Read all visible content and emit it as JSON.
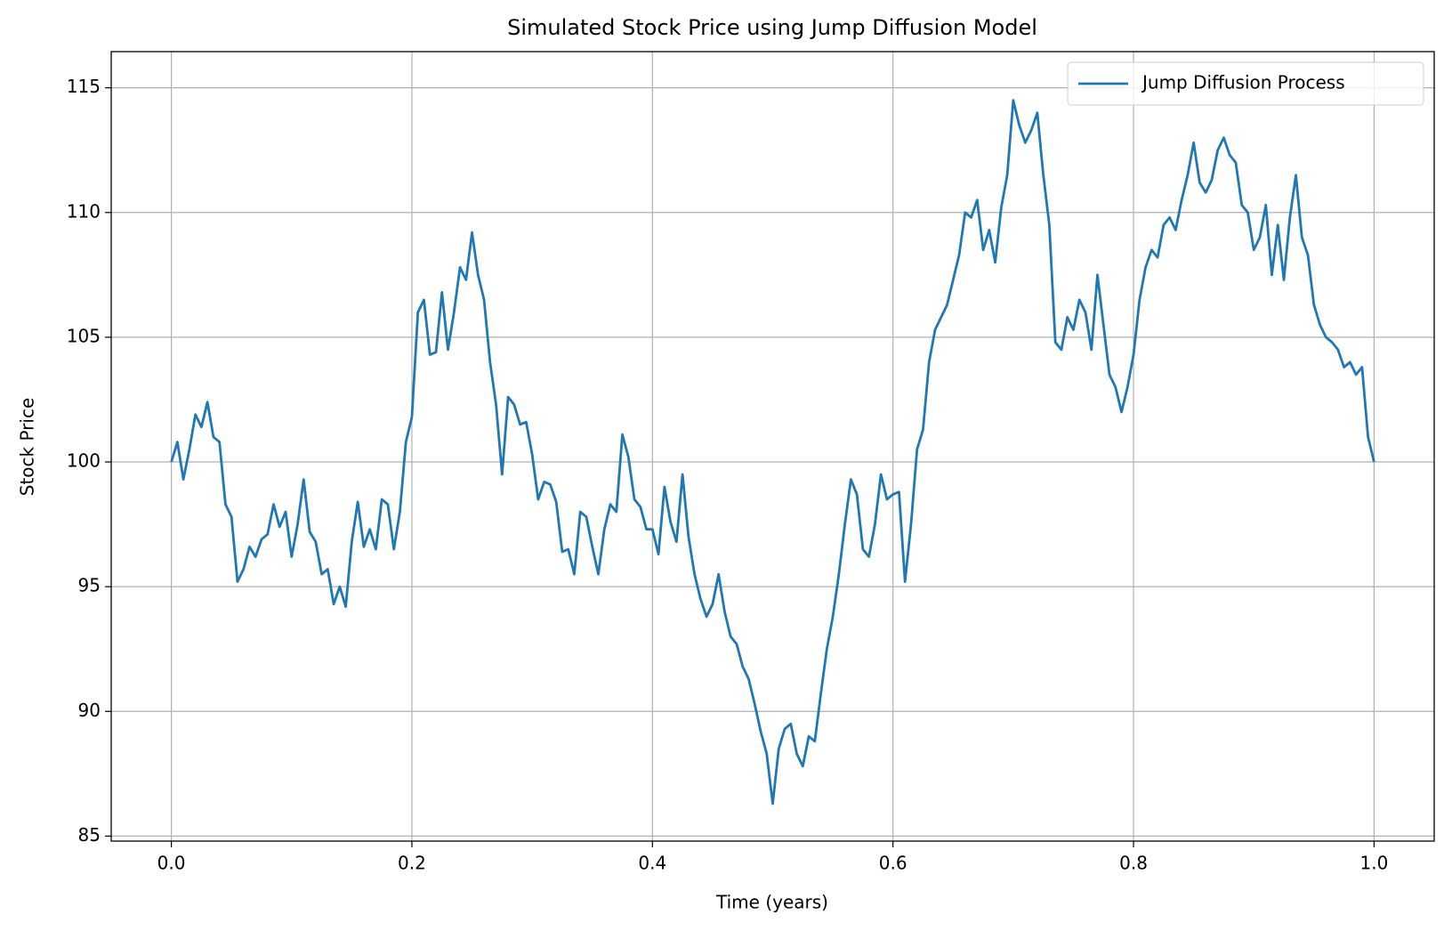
{
  "chart_data": {
    "type": "line",
    "title": "Simulated Stock Price using Jump Diffusion Model",
    "x_label": "Time (years)",
    "y_label": "Stock Price",
    "xlim": [
      -0.05,
      1.05
    ],
    "ylim": [
      84.8,
      116.45
    ],
    "xticks": [
      {
        "value": 0,
        "label": "0.0"
      },
      0.2,
      0.4,
      0.6,
      0.8,
      {
        "value": 1,
        "label": "1.0"
      }
    ],
    "yticks": [
      85,
      90,
      95,
      100,
      105,
      110,
      115
    ],
    "grid": true,
    "legend": "upper right",
    "x": [
      0,
      0.005,
      0.01,
      0.015,
      0.02,
      0.025,
      0.03,
      0.035,
      0.04,
      0.045,
      0.05,
      0.055,
      0.06,
      0.065,
      0.07,
      0.075,
      0.08,
      0.085,
      0.09,
      0.095,
      0.1,
      0.105,
      0.11,
      0.115,
      0.12,
      0.125,
      0.13,
      0.135,
      0.14,
      0.145,
      0.15,
      0.155,
      0.16,
      0.165,
      0.17,
      0.175,
      0.18,
      0.185,
      0.19,
      0.195,
      0.2,
      0.205,
      0.21,
      0.215,
      0.22,
      0.225,
      0.23,
      0.235,
      0.24,
      0.245,
      0.25,
      0.255,
      0.26,
      0.265,
      0.27,
      0.275,
      0.28,
      0.285,
      0.29,
      0.295,
      0.3,
      0.305,
      0.31,
      0.315,
      0.32,
      0.325,
      0.33,
      0.335,
      0.34,
      0.345,
      0.35,
      0.355,
      0.36,
      0.365,
      0.37,
      0.375,
      0.38,
      0.385,
      0.39,
      0.395,
      0.4,
      0.405,
      0.41,
      0.415,
      0.42,
      0.425,
      0.43,
      0.435,
      0.44,
      0.445,
      0.45,
      0.455,
      0.46,
      0.465,
      0.47,
      0.475,
      0.48,
      0.485,
      0.49,
      0.495,
      0.5,
      0.505,
      0.51,
      0.515,
      0.52,
      0.525,
      0.53,
      0.535,
      0.54,
      0.545,
      0.55,
      0.555,
      0.56,
      0.565,
      0.57,
      0.575,
      0.58,
      0.585,
      0.59,
      0.595,
      0.6,
      0.605,
      0.61,
      0.615,
      0.62,
      0.625,
      0.63,
      0.635,
      0.64,
      0.645,
      0.65,
      0.655,
      0.66,
      0.665,
      0.67,
      0.675,
      0.68,
      0.685,
      0.69,
      0.695,
      0.7,
      0.705,
      0.71,
      0.715,
      0.72,
      0.725,
      0.73,
      0.735,
      0.74,
      0.745,
      0.75,
      0.755,
      0.76,
      0.765,
      0.77,
      0.775,
      0.78,
      0.785,
      0.79,
      0.795,
      0.8,
      0.805,
      0.81,
      0.815,
      0.82,
      0.825,
      0.83,
      0.835,
      0.84,
      0.845,
      0.85,
      0.855,
      0.86,
      0.865,
      0.87,
      0.875,
      0.88,
      0.885,
      0.89,
      0.895,
      0.9,
      0.905,
      0.91,
      0.915,
      0.92,
      0.925,
      0.93,
      0.935,
      0.94,
      0.945,
      0.95,
      0.955,
      0.96,
      0.965,
      0.97,
      0.975,
      0.98,
      0.985,
      0.99,
      0.995,
      1
    ],
    "series": [
      {
        "name": "Jump Diffusion Process",
        "color": "#1f77b4",
        "values": [
          100,
          100.8,
          99.3,
          100.5,
          101.9,
          101.4,
          102.4,
          101.0,
          100.8,
          98.3,
          97.8,
          95.2,
          95.7,
          96.6,
          96.2,
          96.9,
          97.1,
          98.3,
          97.4,
          98.0,
          96.2,
          97.5,
          99.3,
          97.2,
          96.8,
          95.5,
          95.7,
          94.3,
          95.0,
          94.2,
          96.8,
          98.4,
          96.6,
          97.3,
          96.5,
          98.5,
          98.3,
          96.5,
          98.0,
          100.8,
          101.8,
          106.0,
          106.5,
          104.3,
          104.4,
          106.8,
          104.5,
          106.0,
          107.8,
          107.3,
          109.2,
          107.5,
          106.5,
          104.0,
          102.3,
          99.5,
          102.6,
          102.3,
          101.5,
          101.6,
          100.3,
          98.5,
          99.2,
          99.1,
          98.4,
          96.4,
          96.5,
          95.5,
          98.0,
          97.8,
          96.6,
          95.5,
          97.3,
          98.3,
          98.0,
          101.1,
          100.2,
          98.5,
          98.2,
          97.3,
          97.3,
          96.3,
          99.0,
          97.6,
          96.8,
          99.5,
          97.0,
          95.5,
          94.5,
          93.8,
          94.3,
          95.5,
          94.0,
          93.0,
          92.7,
          91.8,
          91.3,
          90.3,
          89.2,
          88.3,
          86.3,
          88.5,
          89.3,
          89.5,
          88.3,
          87.8,
          89.0,
          88.8,
          90.7,
          92.5,
          93.8,
          95.5,
          97.5,
          99.3,
          98.7,
          96.5,
          96.2,
          97.5,
          99.5,
          98.5,
          98.7,
          98.8,
          95.2,
          97.5,
          100.5,
          101.3,
          104.0,
          105.3,
          105.8,
          106.3,
          107.3,
          108.3,
          110.0,
          109.8,
          110.5,
          108.5,
          109.3,
          108.0,
          110.2,
          111.5,
          114.5,
          113.5,
          112.8,
          113.3,
          114.0,
          111.5,
          109.5,
          104.8,
          104.5,
          105.8,
          105.3,
          106.5,
          106.0,
          104.5,
          107.5,
          105.5,
          103.5,
          103.0,
          102.0,
          103.0,
          104.3,
          106.5,
          107.8,
          108.5,
          108.2,
          109.5,
          109.8,
          109.3,
          110.5,
          111.5,
          112.8,
          111.2,
          110.8,
          111.3,
          112.5,
          113.0,
          112.3,
          112.0,
          110.3,
          110.0,
          108.5,
          109.0,
          110.3,
          107.5,
          109.5,
          107.3,
          109.8,
          111.5,
          109.0,
          108.3,
          106.3,
          105.5,
          105.0,
          104.8,
          104.5,
          103.8,
          104.0,
          103.5,
          103.8,
          101.0,
          100.0
        ]
      }
    ]
  }
}
